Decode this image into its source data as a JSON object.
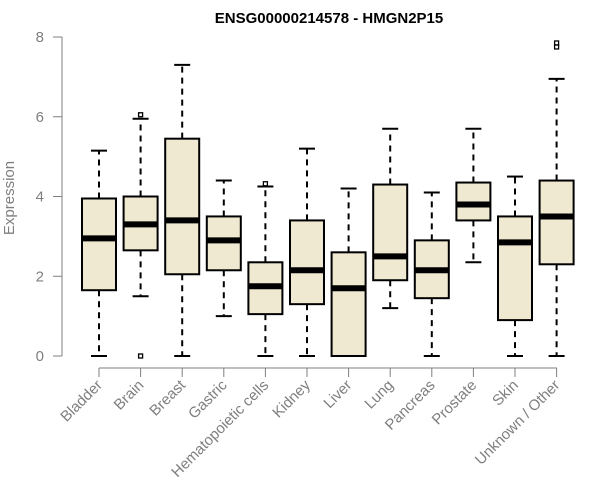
{
  "chart_data": {
    "type": "boxplot",
    "title": "ENSG00000214578 - HMGN2P15",
    "xlabel": "",
    "ylabel": "Expression",
    "ylim": [
      0,
      8
    ],
    "yticks": [
      0,
      2,
      4,
      6,
      8
    ],
    "colors": {
      "box_fill": "#efe9d1",
      "axis": "#7f7f7f"
    },
    "categories": [
      "Bladder",
      "Brain",
      "Breast",
      "Gastric",
      "Hematopoietic cells",
      "Kidney",
      "Liver",
      "Lung",
      "Pancreas",
      "Prostate",
      "Skin",
      "Unknown / Other"
    ],
    "boxes": [
      {
        "category": "Bladder",
        "min": 0,
        "q1": 1.65,
        "median": 2.95,
        "q3": 3.95,
        "max": 5.15,
        "outliers": []
      },
      {
        "category": "Brain",
        "min": 1.5,
        "q1": 2.65,
        "median": 3.3,
        "q3": 4.0,
        "max": 5.95,
        "outliers": [
          6.05,
          0.0
        ]
      },
      {
        "category": "Breast",
        "min": 0,
        "q1": 2.05,
        "median": 3.4,
        "q3": 5.45,
        "max": 7.3,
        "outliers": []
      },
      {
        "category": "Gastric",
        "min": 1.0,
        "q1": 2.15,
        "median": 2.9,
        "q3": 3.5,
        "max": 4.4,
        "outliers": []
      },
      {
        "category": "Hematopoietic cells",
        "min": 0,
        "q1": 1.05,
        "median": 1.75,
        "q3": 2.35,
        "max": 4.25,
        "outliers": [
          4.32
        ]
      },
      {
        "category": "Kidney",
        "min": 0,
        "q1": 1.3,
        "median": 2.15,
        "q3": 3.4,
        "max": 5.2,
        "outliers": []
      },
      {
        "category": "Liver",
        "min": 0,
        "q1": 0,
        "median": 1.7,
        "q3": 2.6,
        "max": 4.2,
        "outliers": []
      },
      {
        "category": "Lung",
        "min": 1.2,
        "q1": 1.9,
        "median": 2.5,
        "q3": 4.3,
        "max": 5.7,
        "outliers": []
      },
      {
        "category": "Pancreas",
        "min": 0,
        "q1": 1.45,
        "median": 2.15,
        "q3": 2.9,
        "max": 4.1,
        "outliers": []
      },
      {
        "category": "Prostate",
        "min": 2.35,
        "q1": 3.4,
        "median": 3.8,
        "q3": 4.35,
        "max": 5.7,
        "outliers": []
      },
      {
        "category": "Skin",
        "min": 0,
        "q1": 0.9,
        "median": 2.85,
        "q3": 3.5,
        "max": 4.5,
        "outliers": []
      },
      {
        "category": "Unknown / Other",
        "min": 0,
        "q1": 2.3,
        "median": 3.5,
        "q3": 4.4,
        "max": 6.95,
        "outliers": [
          7.75,
          7.85
        ]
      }
    ]
  }
}
